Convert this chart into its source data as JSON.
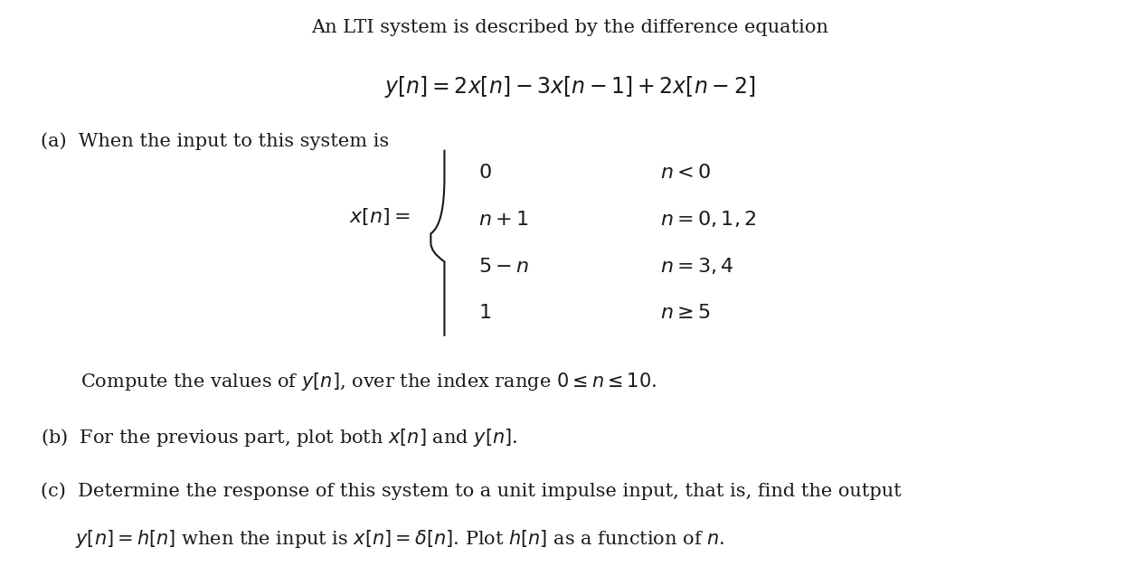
{
  "bg_color": "#ffffff",
  "title_line": "An LTI system is described by the difference equation",
  "diff_eq": "$y[n] = 2x[n] - 3x[n-1] + 2x[n-2]$",
  "part_a_intro": "(a)  When the input to this system is",
  "piecewise_label": "$x[n] = $",
  "piecewise_cases": [
    [
      "$0$",
      "$n < 0$"
    ],
    [
      "$n+1$",
      "$n = 0, 1, 2$"
    ],
    [
      "$5-n$",
      "$n = 3, 4$"
    ],
    [
      "$1$",
      "$n \\geq 5$"
    ]
  ],
  "compute_line": "Compute the values of $y[n]$, over the index range $0 \\leq n \\leq 10$.",
  "part_b": "(b)  For the previous part, plot both $x[n]$ and $y[n]$.",
  "part_c_line1": "(c)  Determine the response of this system to a unit impulse input, that is, find the output",
  "part_c_line2": "$y[n] = h[n]$ when the input is $x[n] = \\delta[n]$. Plot $h[n]$ as a function of $n$.",
  "font_size_title": 15,
  "font_size_body": 14,
  "font_size_eq": 16,
  "text_color": "#1a1a1a"
}
